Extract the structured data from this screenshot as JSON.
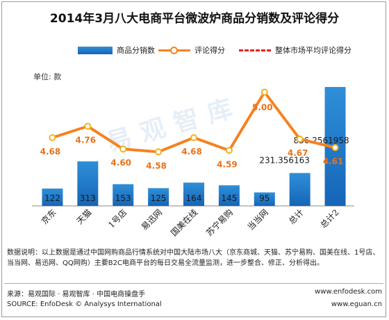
{
  "title": "2014年3月八大电商平台微波炉商品分销数及评论得分",
  "unit_label": "单位: 款",
  "watermark_text": "易观智库",
  "legend": {
    "bar_label": "商品分销数",
    "line_label": "评论得分",
    "avg_label": "整体市场平均评论得分"
  },
  "note": "数据说明：以上数据是通过中国网购商品行情系统对中国大陆市场八大（京东商城、天猫、苏宁易购、国美在线、1号店、当当网、易迅网、QQ网购）主要B2C电商平台的每日交易全流量监测，进一步整合、修正、分析得出。",
  "footer": {
    "source_cn": "来源：易观国际 · 易观智库 · 中国电商操盘手",
    "source_en": "SOURCE: EnfoDesk © Analysys International",
    "url1": "www.enfodesk.com",
    "url2": "www.eguan.cn"
  },
  "colors": {
    "bar_top": "#2f8fd8",
    "bar_bottom": "#1565b8",
    "line": "#f58220",
    "avg": "#e82020",
    "score_label": "#e8731a"
  },
  "chart_data": {
    "type": "bar",
    "title": "2014年3月八大电商平台微波炉商品分销数及评论得分",
    "categories": [
      "京东",
      "天猫",
      "1号店",
      "易迅网",
      "国美在线",
      "苏宁易购",
      "当当网",
      "总计",
      "总计2"
    ],
    "series": [
      {
        "name": "商品分销数",
        "type": "bar",
        "values": [
          122,
          313,
          153,
          125,
          164,
          145,
          95,
          231.356163,
          836.2561958
        ],
        "labels": [
          "122",
          "313",
          "153",
          "125",
          "164",
          "145",
          "95",
          "231.356163",
          "836.2561958"
        ]
      },
      {
        "name": "评论得分",
        "type": "line",
        "values": [
          4.68,
          4.76,
          4.6,
          4.58,
          4.68,
          4.59,
          5.0,
          4.67,
          4.61
        ],
        "labels": [
          "4.68",
          "4.76",
          "4.60",
          "4.58",
          "4.68",
          "4.59",
          "5.00",
          "4.67",
          "4.61"
        ]
      }
    ],
    "bar_axis_range": [
      0,
      900
    ],
    "line_axis_range": [
      4.2,
      5.1
    ],
    "grid": false,
    "legend_position": "top-right"
  }
}
